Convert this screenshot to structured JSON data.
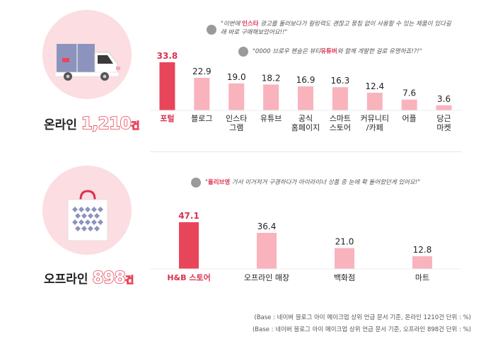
{
  "online": {
    "label": "온라인",
    "count": "1,210",
    "unit": "건",
    "quote1": {
      "pre": "\"이번에 ",
      "hl": "인스타",
      "post": " 광고를 둘러보다가 컬링력도 괜찮고 뭉침 없이 사용할 수 있는 제품이 있다길래 바로 구매해보았어요!!\""
    },
    "quote2": {
      "pre": "\"0000 브로우 펜슬은 뷰티",
      "hl": "유튜버",
      "post": "와 함께 개발한 걸로 유명하죠!?!\""
    }
  },
  "offline": {
    "label": "오프라인",
    "count": "898",
    "unit": "건",
    "quote1": {
      "pre": "\"",
      "hl": "올리브영",
      "post": " 가서 이거저거 구경하다가 아이라이너 상품 중 눈에 확 들어왔던게 있어요!\""
    }
  },
  "footnotes": {
    "online_base": "(Base : 네이버 블로그 아이 메이크업 상위 언급 문서 기준, 온라인 1210건 단위 : %)",
    "offline_base": "(Base : 네이버 블로그 아이 메이크업 상위 언급 문서 기준, 오프라인 898건 단위 : %)"
  },
  "colors": {
    "highlight_bar": "#e8455a",
    "normal_bar": "#f9b3bd",
    "circle": "#fbdde2",
    "highlight_text": "#d9324f"
  },
  "chart_data": [
    {
      "type": "bar",
      "categories": [
        "포털",
        "블로그",
        "인스타\n그램",
        "유튜브",
        "공식\n홈페이지",
        "스마트\n스토어",
        "커뮤니티\n/카페",
        "어플",
        "당근\n마켓"
      ],
      "values": [
        33.8,
        22.9,
        19.0,
        18.2,
        16.9,
        16.3,
        12.4,
        7.6,
        3.6
      ],
      "value_labels": [
        "33.8",
        "22.9",
        "19.0",
        "18.2",
        "16.9",
        "16.3",
        "12.4",
        "7.6",
        "3.6"
      ],
      "highlight_index": 0,
      "ylim": [
        0,
        33.8
      ]
    },
    {
      "type": "bar",
      "categories": [
        "H&B 스토어",
        "오프라인 매장",
        "백화점",
        "마트"
      ],
      "values": [
        47.1,
        36.4,
        21.0,
        12.8
      ],
      "value_labels": [
        "47.1",
        "36.4",
        "21.0",
        "12.8"
      ],
      "highlight_index": 0,
      "ylim": [
        0,
        47.1
      ]
    }
  ]
}
